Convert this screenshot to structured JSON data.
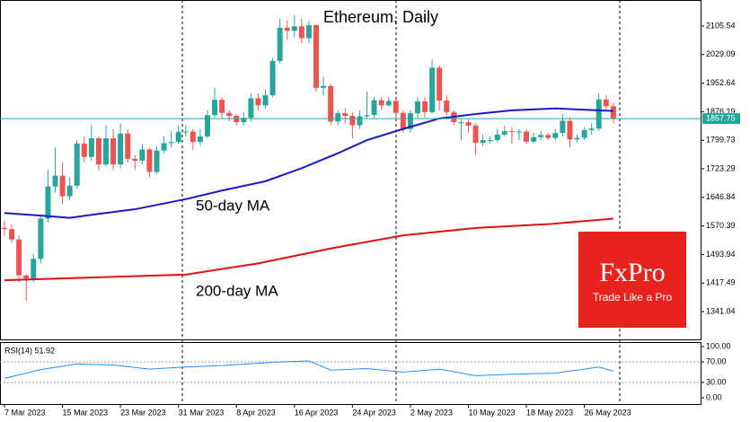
{
  "chart_data": {
    "type": "candlestick",
    "title": "Ethereum, Daily",
    "open": [
      1565,
      1562,
      1534,
      1438,
      1430,
      1482,
      1590,
      1676,
      1705,
      1650,
      1678,
      1791,
      1755,
      1805,
      1735,
      1805,
      1735,
      1818,
      1750,
      1745,
      1775,
      1715,
      1772,
      1792,
      1795,
      1822,
      1823,
      1795,
      1810,
      1867,
      1908,
      1873,
      1865,
      1848,
      1860,
      1912,
      1893,
      1920,
      2012,
      2101,
      2093,
      2105,
      2073,
      2108,
      1940,
      1945,
      1850,
      1872,
      1865,
      1840,
      1864,
      1867,
      1907,
      1893,
      1905,
      1873,
      1830,
      1872,
      1904,
      1875,
      1994,
      1906,
      1875,
      1848,
      1848,
      1839,
      1793,
      1800,
      1800,
      1815,
      1824,
      1822,
      1823,
      1796,
      1808,
      1814,
      1806,
      1819,
      1852,
      1802,
      1806,
      1827,
      1831,
      1909,
      1891
    ],
    "high": [
      1585,
      1575,
      1545,
      1440,
      1495,
      1600,
      1720,
      1780,
      1740,
      1700,
      1800,
      1810,
      1840,
      1810,
      1840,
      1830,
      1845,
      1830,
      1760,
      1790,
      1780,
      1785,
      1810,
      1825,
      1840,
      1840,
      1830,
      1830,
      1880,
      1940,
      1915,
      1880,
      1870,
      1875,
      1925,
      1925,
      1935,
      2020,
      2125,
      2120,
      2135,
      2125,
      2120,
      2110,
      1970,
      1950,
      1880,
      1885,
      1875,
      1880,
      1930,
      1915,
      1915,
      1915,
      1910,
      1880,
      1880,
      1915,
      1915,
      2015,
      2000,
      1920,
      1880,
      1855,
      1855,
      1845,
      1815,
      1810,
      1830,
      1840,
      1835,
      1830,
      1830,
      1820,
      1825,
      1820,
      1830,
      1870,
      1860,
      1815,
      1835,
      1845,
      1925,
      1920,
      1900
    ],
    "low": [
      1545,
      1525,
      1420,
      1370,
      1420,
      1470,
      1580,
      1660,
      1630,
      1640,
      1670,
      1740,
      1745,
      1720,
      1730,
      1720,
      1725,
      1740,
      1720,
      1735,
      1700,
      1710,
      1765,
      1780,
      1790,
      1810,
      1775,
      1785,
      1805,
      1860,
      1860,
      1850,
      1840,
      1840,
      1850,
      1880,
      1885,
      1915,
      2005,
      2070,
      2075,
      2060,
      2060,
      1930,
      1920,
      1840,
      1840,
      1845,
      1805,
      1830,
      1860,
      1860,
      1880,
      1890,
      1855,
      1820,
      1820,
      1860,
      1860,
      1870,
      1880,
      1865,
      1840,
      1800,
      1820,
      1760,
      1785,
      1790,
      1795,
      1810,
      1790,
      1800,
      1790,
      1790,
      1800,
      1800,
      1800,
      1810,
      1780,
      1795,
      1800,
      1815,
      1825,
      1880,
      1845
    ],
    "close": [
      1562,
      1534,
      1438,
      1430,
      1482,
      1590,
      1676,
      1705,
      1650,
      1678,
      1791,
      1755,
      1805,
      1735,
      1805,
      1735,
      1818,
      1750,
      1745,
      1775,
      1715,
      1772,
      1792,
      1795,
      1822,
      1823,
      1795,
      1810,
      1867,
      1908,
      1873,
      1865,
      1848,
      1860,
      1912,
      1893,
      1920,
      2012,
      2101,
      2093,
      2105,
      2073,
      2108,
      1940,
      1945,
      1850,
      1872,
      1865,
      1840,
      1864,
      1867,
      1907,
      1893,
      1905,
      1873,
      1830,
      1872,
      1904,
      1875,
      1994,
      1906,
      1875,
      1848,
      1848,
      1839,
      1793,
      1800,
      1800,
      1815,
      1824,
      1822,
      1823,
      1796,
      1808,
      1814,
      1806,
      1819,
      1852,
      1802,
      1806,
      1827,
      1831,
      1909,
      1891,
      1857.75
    ],
    "up_color": "#26a69a",
    "down_color": "#ef5350",
    "series": [
      {
        "name": "50-day MA",
        "color": "#1a1ac8",
        "x": [
          0,
          5,
          9,
          12,
          18,
          25,
          30,
          36,
          41,
          46,
          50,
          55,
          60,
          65,
          70,
          76,
          84
        ],
        "values": [
          1605,
          1598,
          1592,
          1600,
          1615,
          1642,
          1665,
          1690,
          1725,
          1765,
          1800,
          1830,
          1858,
          1870,
          1880,
          1885,
          1878
        ]
      },
      {
        "name": "200-day MA",
        "color": "#e01010",
        "x": [
          0,
          25,
          35,
          45,
          55,
          65,
          75,
          84
        ],
        "values": [
          1425,
          1440,
          1470,
          1510,
          1545,
          1565,
          1575,
          1590
        ]
      }
    ],
    "current_price": 1857.75,
    "current_color": "#26a69a",
    "ylim": [
      1266.5,
      2175.3
    ],
    "yticks": [
      1341.04,
      1417.49,
      1493.94,
      1570.39,
      1646.84,
      1723.29,
      1799.73,
      1876.19,
      1952.64,
      2029.09,
      2105.54
    ],
    "xticks": [
      {
        "value": 0,
        "label": "7 Mar 2023"
      },
      {
        "value": 8,
        "label": "15 Mar 2023"
      },
      {
        "value": 16,
        "label": "23 Mar 2023"
      },
      {
        "value": 24,
        "label": "31 Mar 2023"
      },
      {
        "value": 32,
        "label": "8 Apr 2023"
      },
      {
        "value": 40,
        "label": "16 Apr 2023"
      },
      {
        "value": 48,
        "label": "24 Apr 2023"
      },
      {
        "value": 56,
        "label": "2 May 2023"
      },
      {
        "value": 64,
        "label": "10 May 2023"
      },
      {
        "value": 72,
        "label": "18 May 2023"
      },
      {
        "value": 80,
        "label": "26 May 2023"
      }
    ],
    "rsi": {
      "label": "RSI(14) 51.92",
      "color": "#1e90ff",
      "x": [
        0,
        5,
        10,
        15,
        20,
        25,
        30,
        38,
        42,
        45,
        50,
        55,
        60,
        65,
        70,
        76,
        82,
        84
      ],
      "values": [
        38,
        55,
        66,
        64,
        56,
        60,
        63,
        70,
        72,
        54,
        57,
        50,
        56,
        43,
        46,
        48,
        60,
        52
      ],
      "ylim": [
        -12.3,
        108.8
      ],
      "yticks": [
        {
          "value": 0,
          "label": "0.00"
        },
        {
          "value": 30,
          "label": "30.00"
        },
        {
          "value": 70,
          "label": "70.00"
        },
        {
          "value": 100,
          "label": "100.00"
        }
      ]
    }
  },
  "logo": {
    "brand": "FxPro",
    "tagline": "Trade Like a Pro"
  }
}
